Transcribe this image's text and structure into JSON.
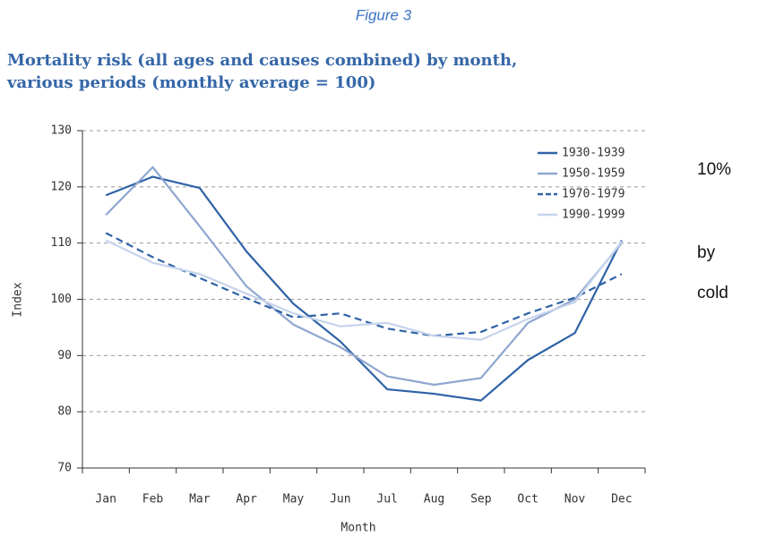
{
  "figure_label": "Figure 3",
  "side_text": [
    "10%",
    "by",
    "cold"
  ],
  "chart_data": {
    "type": "line",
    "title": [
      "Mortality risk (all ages and causes combined) by month,",
      "various periods (monthly average = 100)"
    ],
    "x_label": "Month",
    "y_label": "Index",
    "categories": [
      "Jan",
      "Feb",
      "Mar",
      "Apr",
      "May",
      "Jun",
      "Jul",
      "Aug",
      "Sep",
      "Oct",
      "Nov",
      "Dec"
    ],
    "series": [
      {
        "name": "1930-1939",
        "color": "#2f62a6",
        "dashed": false,
        "values": [
          118.5,
          121.8,
          119.8,
          108.5,
          99.2,
          92.5,
          84,
          83.2,
          82,
          89.2,
          94,
          110.5
        ]
      },
      {
        "name": "1950-1959",
        "color": "#8ea6d0",
        "dashed": false,
        "values": [
          115,
          123.5,
          113,
          102.3,
          95.5,
          91.5,
          86.3,
          84.8,
          86,
          95.8,
          100,
          110
        ]
      },
      {
        "name": "1970-1979",
        "color": "#2f62a6",
        "dashed": true,
        "values": [
          111.8,
          107.5,
          103.8,
          100.2,
          96.8,
          97.5,
          94.8,
          93.5,
          94.2,
          97.5,
          100.3,
          104.5
        ]
      },
      {
        "name": "1990-1999",
        "color": "#c6d4ec",
        "dashed": false,
        "values": [
          110.5,
          106.5,
          104.5,
          101,
          97.5,
          95.2,
          95.8,
          93.5,
          92.8,
          96.5,
          99.5,
          110.3
        ]
      }
    ],
    "ylim": [
      70,
      130
    ],
    "yticks": [
      70,
      80,
      90,
      100,
      110,
      120,
      130
    ],
    "grid": true,
    "legend": "upper-right"
  }
}
